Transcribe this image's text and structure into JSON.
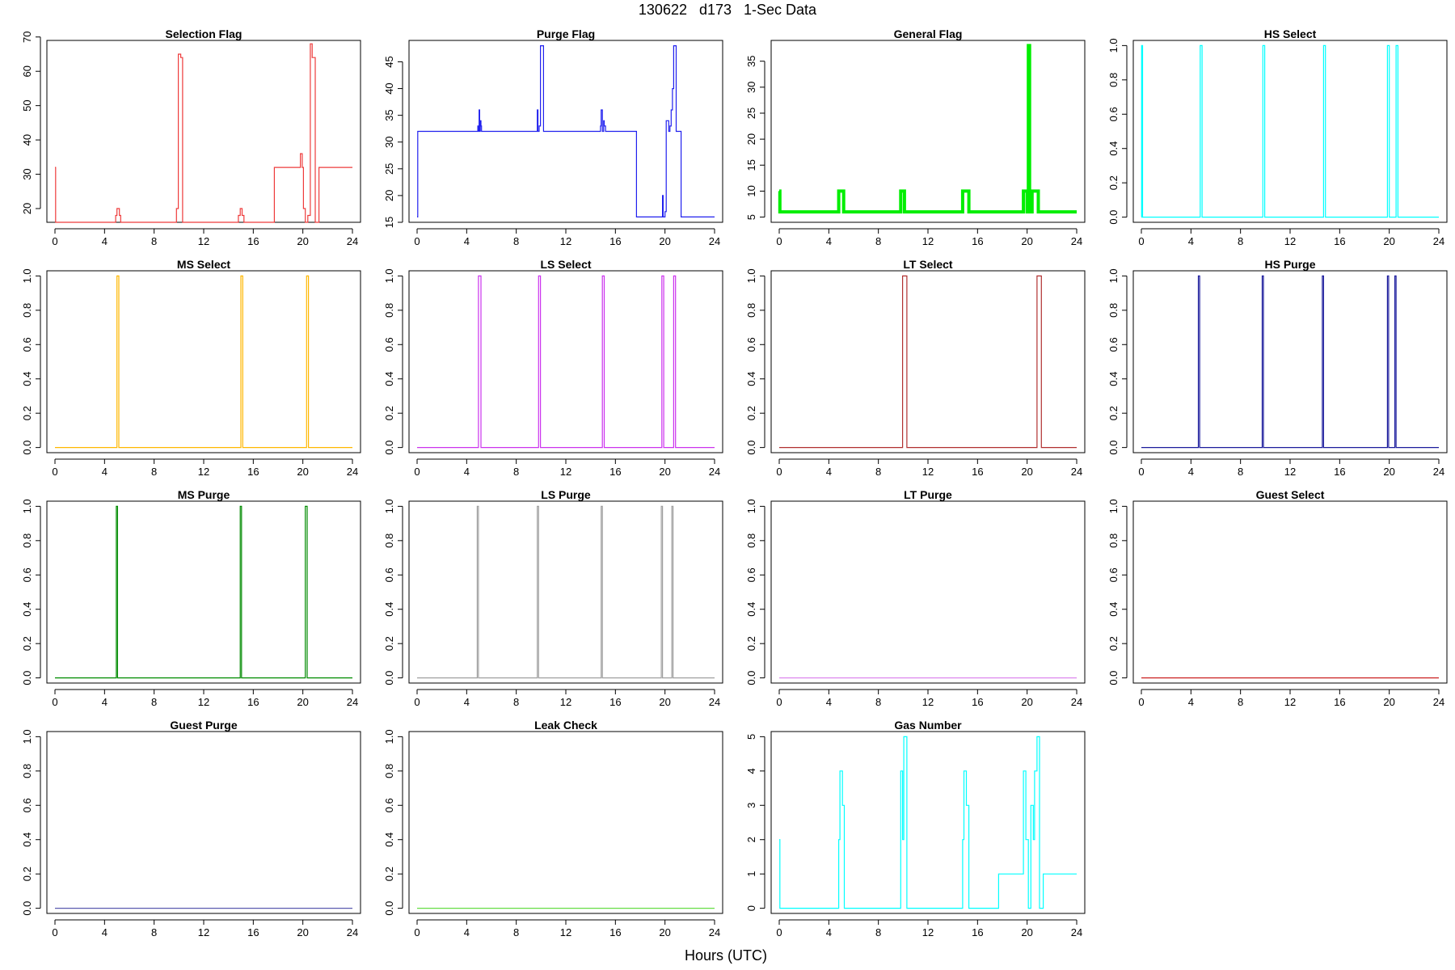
{
  "figure": {
    "title": "130622   d173   1-Sec Data",
    "xlabel": "Hours (UTC)"
  },
  "chart_data": [
    {
      "type": "line",
      "title": "Selection Flag",
      "color": "#ee3b3b",
      "xlim": [
        0,
        24
      ],
      "xticks": [
        0,
        4,
        8,
        12,
        16,
        20,
        24
      ],
      "ylim": [
        16,
        69
      ],
      "yticks": [
        20,
        30,
        40,
        50,
        60,
        70
      ],
      "yticklabels": [
        "20",
        "30",
        "40",
        "50",
        "60",
        "70"
      ],
      "x": [
        0,
        0.05,
        0.05,
        4.9,
        4.9,
        5.0,
        5.0,
        5.2,
        5.2,
        5.3,
        5.3,
        9.8,
        9.8,
        9.95,
        9.95,
        10.15,
        10.15,
        10.3,
        10.3,
        14.8,
        14.8,
        14.95,
        14.95,
        15.1,
        15.1,
        15.25,
        15.25,
        17.7,
        17.7,
        19.8,
        19.8,
        19.95,
        19.95,
        20.05,
        20.05,
        20.2,
        20.2,
        20.4,
        20.4,
        20.6,
        20.6,
        20.75,
        20.75,
        21.0,
        21.0,
        21.3,
        21.3,
        24
      ],
      "y": [
        32,
        32,
        16,
        16,
        18,
        18,
        20,
        20,
        18,
        18,
        16,
        16,
        20,
        20,
        65,
        65,
        64,
        64,
        16,
        16,
        18,
        18,
        20,
        20,
        18,
        18,
        16,
        16,
        32,
        32,
        36,
        36,
        32,
        32,
        20,
        20,
        16,
        16,
        18,
        18,
        68,
        68,
        64,
        64,
        16,
        16,
        32,
        32
      ]
    },
    {
      "type": "line",
      "title": "Purge Flag",
      "color": "#2020ee",
      "xlim": [
        0,
        24
      ],
      "xticks": [
        0,
        4,
        8,
        12,
        16,
        20,
        24
      ],
      "ylim": [
        15,
        49
      ],
      "yticks": [
        15,
        20,
        25,
        30,
        35,
        40,
        45
      ],
      "yticklabels": [
        "15",
        "20",
        "25",
        "30",
        "35",
        "40",
        "45"
      ],
      "x": [
        0,
        0.05,
        0.05,
        4.9,
        4.9,
        4.95,
        4.95,
        5.0,
        5.0,
        5.05,
        5.05,
        5.1,
        5.1,
        5.15,
        5.15,
        5.2,
        5.2,
        9.7,
        9.7,
        9.75,
        9.75,
        9.85,
        9.85,
        9.95,
        9.95,
        10.2,
        10.2,
        14.8,
        14.8,
        14.85,
        14.85,
        14.95,
        14.95,
        15.05,
        15.05,
        15.1,
        15.1,
        15.2,
        15.2,
        17.7,
        17.7,
        19.8,
        19.8,
        19.85,
        19.85,
        20.0,
        20.0,
        20.1,
        20.1,
        20.3,
        20.3,
        20.4,
        20.4,
        20.5,
        20.5,
        20.6,
        20.6,
        20.7,
        20.7,
        20.9,
        20.9,
        21.3,
        21.3,
        24
      ],
      "y": [
        16,
        16,
        32,
        32,
        33,
        33,
        32,
        32,
        36,
        36,
        32,
        32,
        34,
        34,
        33,
        33,
        32,
        32,
        36,
        36,
        32,
        32,
        33,
        33,
        48,
        48,
        32,
        32,
        33,
        33,
        36,
        36,
        32,
        32,
        34,
        34,
        33,
        33,
        32,
        32,
        16,
        16,
        20,
        20,
        16,
        16,
        17,
        17,
        34,
        34,
        32,
        32,
        33,
        33,
        36,
        36,
        40,
        40,
        48,
        48,
        32,
        32,
        16,
        16
      ]
    },
    {
      "type": "line",
      "title": "General Flag",
      "color": "#00ee00",
      "xlim": [
        0,
        24
      ],
      "xticks": [
        0,
        4,
        8,
        12,
        16,
        20,
        24
      ],
      "ylim": [
        4,
        39
      ],
      "yticks": [
        5,
        10,
        15,
        20,
        25,
        30,
        35
      ],
      "yticklabels": [
        "5",
        "10",
        "15",
        "20",
        "25",
        "30",
        "35"
      ],
      "x": [
        0,
        0.05,
        0.05,
        4.8,
        4.8,
        5.2,
        5.2,
        9.8,
        9.8,
        10.1,
        10.1,
        14.8,
        14.8,
        15.3,
        15.3,
        19.7,
        19.7,
        20.0,
        20.0,
        20.1,
        20.1,
        20.2,
        20.2,
        20.4,
        20.4,
        20.9,
        20.9,
        24
      ],
      "y": [
        10,
        10,
        6,
        6,
        10,
        10,
        6,
        6,
        10,
        10,
        6,
        6,
        10,
        10,
        6,
        6,
        10,
        10,
        6,
        6,
        38,
        38,
        6,
        6,
        10,
        10,
        6,
        6
      ]
    },
    {
      "type": "line",
      "title": "HS Select",
      "color": "#00ffff",
      "xlim": [
        0,
        24
      ],
      "xticks": [
        0,
        4,
        8,
        12,
        16,
        20,
        24
      ],
      "ylim": [
        -0.03,
        1.03
      ],
      "yticks": [
        0,
        0.2,
        0.4,
        0.6,
        0.8,
        1.0
      ],
      "yticklabels": [
        "0.0",
        "0.2",
        "0.4",
        "0.6",
        "0.8",
        "1.0"
      ],
      "x": [
        0,
        0.02,
        0.02,
        0.1,
        0.1,
        4.75,
        4.75,
        4.9,
        4.9,
        9.8,
        9.8,
        9.95,
        9.95,
        14.7,
        14.7,
        14.85,
        14.85,
        19.85,
        19.85,
        20.0,
        20.0,
        20.55,
        20.55,
        20.7,
        20.7,
        24
      ],
      "y": [
        0,
        0,
        1,
        1,
        0,
        0,
        1,
        1,
        0,
        0,
        1,
        1,
        0,
        0,
        1,
        1,
        0,
        0,
        1,
        1,
        0,
        0,
        1,
        1,
        0,
        0
      ]
    },
    {
      "type": "line",
      "title": "MS Select",
      "color": "#ffb700",
      "xlim": [
        0,
        24
      ],
      "xticks": [
        0,
        4,
        8,
        12,
        16,
        20,
        24
      ],
      "ylim": [
        -0.03,
        1.03
      ],
      "yticks": [
        0,
        0.2,
        0.4,
        0.6,
        0.8,
        1.0
      ],
      "yticklabels": [
        "0.0",
        "0.2",
        "0.4",
        "0.6",
        "0.8",
        "1.0"
      ],
      "x": [
        0,
        5.0,
        5.0,
        5.15,
        5.15,
        15.0,
        15.0,
        15.15,
        15.15,
        20.3,
        20.3,
        20.45,
        20.45,
        24
      ],
      "y": [
        0,
        0,
        1,
        1,
        0,
        0,
        1,
        1,
        0,
        0,
        1,
        1,
        0,
        0
      ]
    },
    {
      "type": "line",
      "title": "LS Select",
      "color": "#cc33ee",
      "xlim": [
        0,
        24
      ],
      "xticks": [
        0,
        4,
        8,
        12,
        16,
        20,
        24
      ],
      "ylim": [
        -0.03,
        1.03
      ],
      "yticks": [
        0,
        0.2,
        0.4,
        0.6,
        0.8,
        1.0
      ],
      "yticklabels": [
        "0.0",
        "0.2",
        "0.4",
        "0.6",
        "0.8",
        "1.0"
      ],
      "x": [
        0,
        4.95,
        4.95,
        5.15,
        5.15,
        9.8,
        9.8,
        9.95,
        9.95,
        14.95,
        14.95,
        15.1,
        15.1,
        19.75,
        19.75,
        19.9,
        19.9,
        20.7,
        20.7,
        20.85,
        20.85,
        24
      ],
      "y": [
        0,
        0,
        1,
        1,
        0,
        0,
        1,
        1,
        0,
        0,
        1,
        1,
        0,
        0,
        1,
        1,
        0,
        0,
        1,
        1,
        0,
        0
      ]
    },
    {
      "type": "line",
      "title": "LT Select",
      "color": "#b03030",
      "xlim": [
        0,
        24
      ],
      "xticks": [
        0,
        4,
        8,
        12,
        16,
        20,
        24
      ],
      "ylim": [
        -0.03,
        1.03
      ],
      "yticks": [
        0,
        0.2,
        0.4,
        0.6,
        0.8,
        1.0
      ],
      "yticklabels": [
        "0.0",
        "0.2",
        "0.4",
        "0.6",
        "0.8",
        "1.0"
      ],
      "x": [
        0,
        9.95,
        9.95,
        10.3,
        10.3,
        20.8,
        20.8,
        21.15,
        21.15,
        24
      ],
      "y": [
        0,
        0,
        1,
        1,
        0,
        0,
        1,
        1,
        0,
        0
      ]
    },
    {
      "type": "line",
      "title": "HS Purge",
      "color": "#1c1c9c",
      "xlim": [
        0,
        24
      ],
      "xticks": [
        0,
        4,
        8,
        12,
        16,
        20,
        24
      ],
      "ylim": [
        -0.03,
        1.03
      ],
      "yticks": [
        0,
        0.2,
        0.4,
        0.6,
        0.8,
        1.0
      ],
      "yticklabels": [
        "0.0",
        "0.2",
        "0.4",
        "0.6",
        "0.8",
        "1.0"
      ],
      "x": [
        0,
        4.6,
        4.6,
        4.7,
        4.7,
        9.75,
        9.75,
        9.85,
        9.85,
        14.6,
        14.6,
        14.7,
        14.7,
        19.85,
        19.85,
        19.95,
        19.95,
        20.45,
        20.45,
        20.55,
        20.55,
        24
      ],
      "y": [
        0,
        0,
        1,
        1,
        0,
        0,
        1,
        1,
        0,
        0,
        1,
        1,
        0,
        0,
        1,
        1,
        0,
        0,
        1,
        1,
        0,
        0
      ]
    },
    {
      "type": "line",
      "title": "MS Purge",
      "color": "#008b00",
      "xlim": [
        0,
        24
      ],
      "xticks": [
        0,
        4,
        8,
        12,
        16,
        20,
        24
      ],
      "ylim": [
        -0.03,
        1.03
      ],
      "yticks": [
        0,
        0.2,
        0.4,
        0.6,
        0.8,
        1.0
      ],
      "yticklabels": [
        "0.0",
        "0.2",
        "0.4",
        "0.6",
        "0.8",
        "1.0"
      ],
      "x": [
        0,
        4.95,
        4.95,
        5.05,
        5.05,
        14.95,
        14.95,
        15.05,
        15.05,
        20.2,
        20.2,
        20.35,
        20.35,
        24
      ],
      "y": [
        0,
        0,
        1,
        1,
        0,
        0,
        1,
        1,
        0,
        0,
        1,
        1,
        0,
        0
      ]
    },
    {
      "type": "line",
      "title": "LS Purge",
      "color": "#a0a0a0",
      "xlim": [
        0,
        24
      ],
      "xticks": [
        0,
        4,
        8,
        12,
        16,
        20,
        24
      ],
      "ylim": [
        -0.03,
        1.03
      ],
      "yticks": [
        0,
        0.2,
        0.4,
        0.6,
        0.8,
        1.0
      ],
      "yticklabels": [
        "0.0",
        "0.2",
        "0.4",
        "0.6",
        "0.8",
        "1.0"
      ],
      "x": [
        0,
        4.85,
        4.85,
        4.95,
        4.95,
        9.7,
        9.7,
        9.8,
        9.8,
        14.85,
        14.85,
        14.95,
        14.95,
        19.7,
        19.7,
        19.8,
        19.8,
        20.55,
        20.55,
        20.65,
        20.65,
        24
      ],
      "y": [
        0,
        0,
        1,
        1,
        0,
        0,
        1,
        1,
        0,
        0,
        1,
        1,
        0,
        0,
        1,
        1,
        0,
        0,
        1,
        1,
        0,
        0
      ]
    },
    {
      "type": "line",
      "title": "LT Purge",
      "color": "#dd88ee",
      "xlim": [
        0,
        24
      ],
      "xticks": [
        0,
        4,
        8,
        12,
        16,
        20,
        24
      ],
      "ylim": [
        -0.03,
        1.03
      ],
      "yticks": [
        0,
        0.2,
        0.4,
        0.6,
        0.8,
        1.0
      ],
      "yticklabels": [
        "0.0",
        "0.2",
        "0.4",
        "0.6",
        "0.8",
        "1.0"
      ],
      "x": [
        0,
        24
      ],
      "y": [
        0,
        0
      ]
    },
    {
      "type": "line",
      "title": "Guest Select",
      "color": "#cc2222",
      "xlim": [
        0,
        24
      ],
      "xticks": [
        0,
        4,
        8,
        12,
        16,
        20,
        24
      ],
      "ylim": [
        -0.03,
        1.03
      ],
      "yticks": [
        0,
        0.2,
        0.4,
        0.6,
        0.8,
        1.0
      ],
      "yticklabels": [
        "0.0",
        "0.2",
        "0.4",
        "0.6",
        "0.8",
        "1.0"
      ],
      "x": [
        0,
        24
      ],
      "y": [
        0,
        0
      ]
    },
    {
      "type": "line",
      "title": "Guest Purge",
      "color": "#5a5ab0",
      "xlim": [
        0,
        24
      ],
      "xticks": [
        0,
        4,
        8,
        12,
        16,
        20,
        24
      ],
      "ylim": [
        -0.03,
        1.03
      ],
      "yticks": [
        0,
        0.2,
        0.4,
        0.6,
        0.8,
        1.0
      ],
      "yticklabels": [
        "0.0",
        "0.2",
        "0.4",
        "0.6",
        "0.8",
        "1.0"
      ],
      "x": [
        0,
        24
      ],
      "y": [
        0,
        0
      ]
    },
    {
      "type": "line",
      "title": "Leak Check",
      "color": "#66dd44",
      "xlim": [
        0,
        24
      ],
      "xticks": [
        0,
        4,
        8,
        12,
        16,
        20,
        24
      ],
      "ylim": [
        -0.03,
        1.03
      ],
      "yticks": [
        0,
        0.2,
        0.4,
        0.6,
        0.8,
        1.0
      ],
      "yticklabels": [
        "0.0",
        "0.2",
        "0.4",
        "0.6",
        "0.8",
        "1.0"
      ],
      "x": [
        0,
        24
      ],
      "y": [
        0,
        0
      ]
    },
    {
      "type": "line",
      "title": "Gas Number",
      "color": "#00ffff",
      "xlim": [
        0,
        24
      ],
      "xticks": [
        0,
        4,
        8,
        12,
        16,
        20,
        24
      ],
      "ylim": [
        -0.15,
        5.15
      ],
      "yticks": [
        0,
        1,
        2,
        3,
        4,
        5
      ],
      "yticklabels": [
        "0",
        "1",
        "2",
        "3",
        "4",
        "5"
      ],
      "x": [
        0,
        0.05,
        0.05,
        4.8,
        4.8,
        4.9,
        4.9,
        5.1,
        5.1,
        5.25,
        5.25,
        9.8,
        9.8,
        9.95,
        9.95,
        10.05,
        10.05,
        10.3,
        10.3,
        14.8,
        14.8,
        14.9,
        14.9,
        15.1,
        15.1,
        15.3,
        15.3,
        17.7,
        17.7,
        19.7,
        19.7,
        19.9,
        19.9,
        20.1,
        20.1,
        20.3,
        20.3,
        20.5,
        20.5,
        20.6,
        20.6,
        20.8,
        20.8,
        21.0,
        21.0,
        21.3,
        21.3,
        24
      ],
      "y": [
        2,
        2,
        0,
        0,
        2,
        2,
        4,
        4,
        3,
        3,
        0,
        0,
        4,
        4,
        2,
        2,
        5,
        5,
        0,
        0,
        2,
        2,
        4,
        4,
        3,
        3,
        0,
        0,
        1,
        1,
        4,
        4,
        2,
        2,
        0,
        0,
        3,
        3,
        2,
        2,
        4,
        4,
        5,
        5,
        0,
        0,
        1,
        1
      ]
    }
  ]
}
